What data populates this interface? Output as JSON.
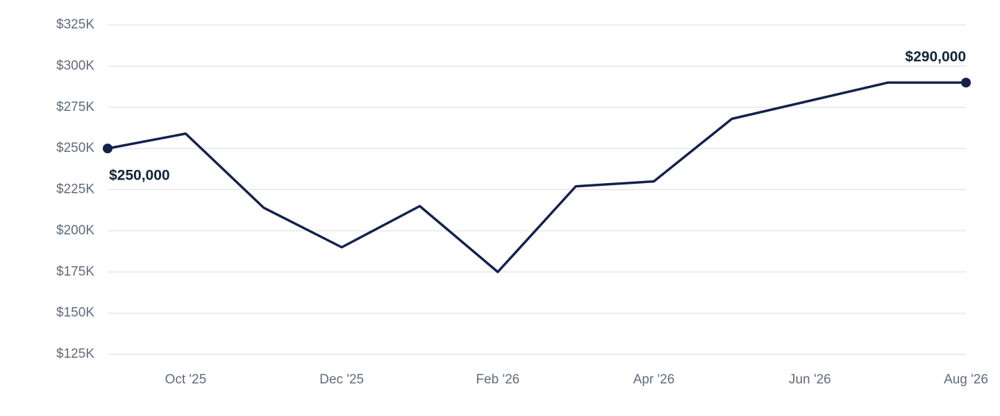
{
  "chart_data": {
    "type": "line",
    "categories": [
      null,
      "Oct '25",
      null,
      "Dec '25",
      null,
      "Feb '26",
      null,
      "Apr '26",
      null,
      "Jun '26",
      null,
      "Aug '26"
    ],
    "series": [
      {
        "color": "#14214d",
        "values": [
          250000,
          259000,
          214000,
          190000,
          215000,
          175000,
          227000,
          230000,
          268000,
          279000,
          290000,
          290000
        ],
        "value_labels": [
          "$250,000",
          null,
          null,
          null,
          null,
          null,
          null,
          null,
          null,
          null,
          null,
          "$290,000"
        ]
      }
    ],
    "ylim": [
      125000,
      325000
    ],
    "yticks": [
      {
        "value": 125000,
        "label": "$125K"
      },
      {
        "value": 150000,
        "label": "$150K"
      },
      {
        "value": 175000,
        "label": "$175K"
      },
      {
        "value": 200000,
        "label": "$200K"
      },
      {
        "value": 225000,
        "label": "$225K"
      },
      {
        "value": 250000,
        "label": "$250K"
      },
      {
        "value": 275000,
        "label": "$275K"
      },
      {
        "value": 300000,
        "label": "$300K"
      },
      {
        "value": 325000,
        "label": "$325K"
      }
    ],
    "grid": true
  }
}
